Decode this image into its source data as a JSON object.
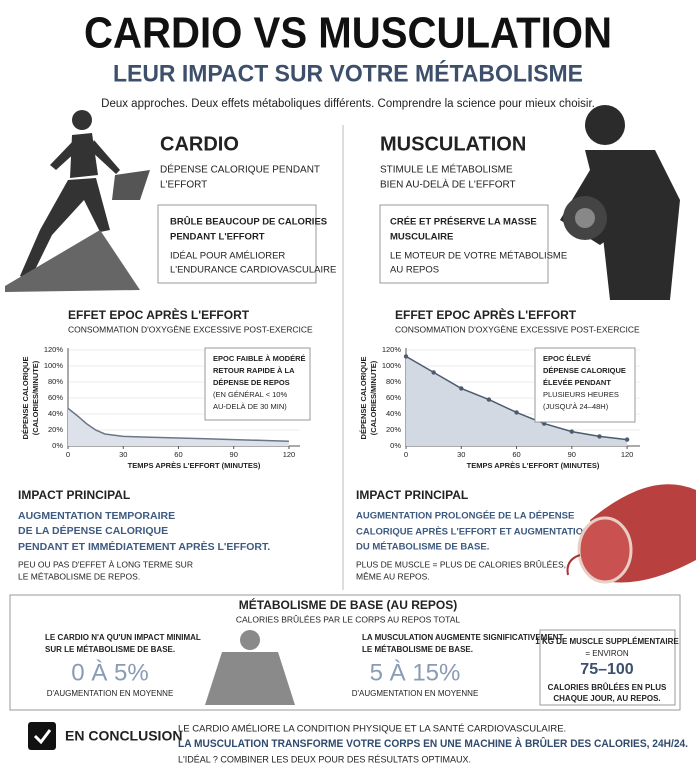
{
  "header": {
    "title": "CARDIO VS MUSCULATION",
    "subtitle": "LEUR IMPACT SUR VOTRE MÉTABOLISME",
    "intro": "Deux approches. Deux effets métaboliques différents. Comprendre la science pour mieux choisir."
  },
  "cardio": {
    "title": "CARDIO",
    "lead": [
      "DÉPENSE CALORIQUE PENDANT",
      "L'EFFORT"
    ],
    "box": {
      "strong": [
        "BRÛLE BEAUCOUP DE CALORIES",
        "PENDANT L'EFFORT"
      ],
      "text": [
        "IDÉAL POUR AMÉLIORER",
        "L'ENDURANCE CARDIOVASCULAIRE"
      ]
    },
    "epoc": {
      "type": "line",
      "title": "EFFET EPOC APRÈS L'EFFORT",
      "subtitle": "CONSOMMATION D'OXYGÈNE EXCESSIVE POST-EXERCICE",
      "y_label": [
        "DÉPENSE CALORIQUE",
        "(CALORIES/MINUTE)"
      ],
      "x_label": "TEMPS APRÈS L'EFFORT (MINUTES)",
      "x": [
        0,
        5,
        10,
        15,
        20,
        30,
        45,
        60,
        75,
        90,
        105,
        120
      ],
      "values": [
        47,
        38,
        28,
        20,
        15,
        12,
        11,
        10,
        9,
        8,
        7,
        6
      ],
      "xlim": [
        0,
        126
      ],
      "xticks": [
        0,
        30,
        60,
        90,
        120
      ],
      "ylim": [
        0,
        120
      ],
      "yticks": [
        {
          "value": 0,
          "label": "0%"
        },
        {
          "value": 20,
          "label": "20%"
        },
        {
          "value": 40,
          "label": "40%"
        },
        {
          "value": 60,
          "label": "60%"
        },
        {
          "value": 80,
          "label": "80%"
        },
        {
          "value": 100,
          "label": "100%"
        },
        {
          "value": 120,
          "label": "120%"
        }
      ],
      "color": "#6b7789",
      "fill": "#dde2ea",
      "markers": false,
      "annotation": [
        "EPOC FAIBLE À MODÉRÉ",
        "RETOUR RAPIDE À LA",
        "DÉPENSE DE REPOS",
        "(EN GÉNÉRAL < 10%",
        "AU-DELÀ DE 30 MIN)"
      ]
    },
    "impact": {
      "title": "IMPACT PRINCIPAL",
      "highlight": [
        "AUGMENTATION TEMPORAIRE",
        "DE LA DÉPENSE CALORIQUE",
        "PENDANT ET IMMÉDIATEMENT APRÈS L'EFFORT."
      ],
      "note": [
        "PEU OU PAS D'EFFET À LONG TERME SUR",
        "LE MÉTABOLISME DE REPOS."
      ]
    }
  },
  "musculation": {
    "title": "MUSCULATION",
    "lead": [
      "STIMULE LE MÉTABOLISME",
      "BIEN AU-DELÀ DE L'EFFORT"
    ],
    "box": {
      "strong": [
        "CRÉE ET PRÉSERVE LA MASSE",
        "MUSCULAIRE"
      ],
      "text": [
        "LE MOTEUR DE VOTRE MÉTABOLISME",
        "AU REPOS"
      ]
    },
    "epoc": {
      "type": "line",
      "title": "EFFET EPOC APRÈS L'EFFORT",
      "subtitle": "CONSOMMATION D'OXYGÈNE EXCESSIVE POST-EXERCICE",
      "y_label": [
        "DÉPENSE CALORIQUE",
        "(CALORIES/MINUTE)"
      ],
      "x_label": "TEMPS APRÈS L'EFFORT (MINUTES)",
      "x": [
        0,
        15,
        30,
        45,
        60,
        75,
        90,
        105,
        120
      ],
      "values": [
        112,
        92,
        72,
        58,
        42,
        28,
        18,
        12,
        8
      ],
      "xlim": [
        0,
        127
      ],
      "xticks": [
        0,
        30,
        60,
        90,
        120
      ],
      "ylim": [
        0,
        120
      ],
      "yticks": [
        {
          "value": 0,
          "label": "0%"
        },
        {
          "value": 20,
          "label": "20%"
        },
        {
          "value": 40,
          "label": "40%"
        },
        {
          "value": 60,
          "label": "60%"
        },
        {
          "value": 80,
          "label": "80%"
        },
        {
          "value": 100,
          "label": "100%"
        },
        {
          "value": 120,
          "label": "120%"
        }
      ],
      "color": "#4d5b70",
      "fill": "#d3d9e3",
      "markers": true,
      "annotation": [
        "EPOC ÉLEVÉ",
        "DÉPENSE CALORIQUE",
        "ÉLEVÉE PENDANT",
        "PLUSIEURS HEURES",
        "(JUSQU'À 24–48H)"
      ]
    },
    "impact": {
      "title": "IMPACT PRINCIPAL",
      "highlight": [
        "AUGMENTATION PROLONGÉE DE LA DÉPENSE",
        "CALORIQUE APRÈS L'EFFORT ET AUGMENTATION",
        "DU MÉTABOLISME DE BASE."
      ],
      "note": [
        "PLUS DE MUSCLE = PLUS DE CALORIES BRÛLÉES,",
        "MÊME AU REPOS."
      ]
    }
  },
  "base": {
    "title": "MÉTABOLISME DE BASE (AU REPOS)",
    "subtitle": "CALORIES BRÛLÉES PAR LE CORPS AU REPOS TOTAL",
    "cardio": {
      "text": [
        "LE CARDIO N'A QU'UN IMPACT MINIMAL",
        "SUR LE MÉTABOLISME DE BASE."
      ],
      "figure": "0 À 5%",
      "caption": "D'AUGMENTATION EN MOYENNE"
    },
    "musculation": {
      "text": [
        "LA MUSCULATION AUGMENTE SIGNIFICATIVEMENT",
        "LE MÉTABOLISME DE BASE."
      ],
      "figure": "5 À 15%",
      "caption": "D'AUGMENTATION EN MOYENNE"
    },
    "muscle_box": {
      "lead": [
        "1 KG DE MUSCLE SUPPLÉMENTAIRE",
        "= ENVIRON"
      ],
      "figure": "75–100",
      "text": [
        "CALORIES BRÛLÉES EN PLUS",
        "CHAQUE JOUR, AU REPOS."
      ]
    }
  },
  "conclusion": {
    "label": "EN CONCLUSION",
    "line1": "LE CARDIO AMÉLIORE LA CONDITION PHYSIQUE ET LA SANTÉ CARDIOVASCULAIRE.",
    "line2": "LA MUSCULATION TRANSFORME VOTRE CORPS EN UNE MACHINE À BRÛLER DES CALORIES, 24H/24.",
    "line3": "L'IDÉAL ? COMBINER LES DEUX POUR DES RÉSULTATS OPTIMAUX."
  }
}
